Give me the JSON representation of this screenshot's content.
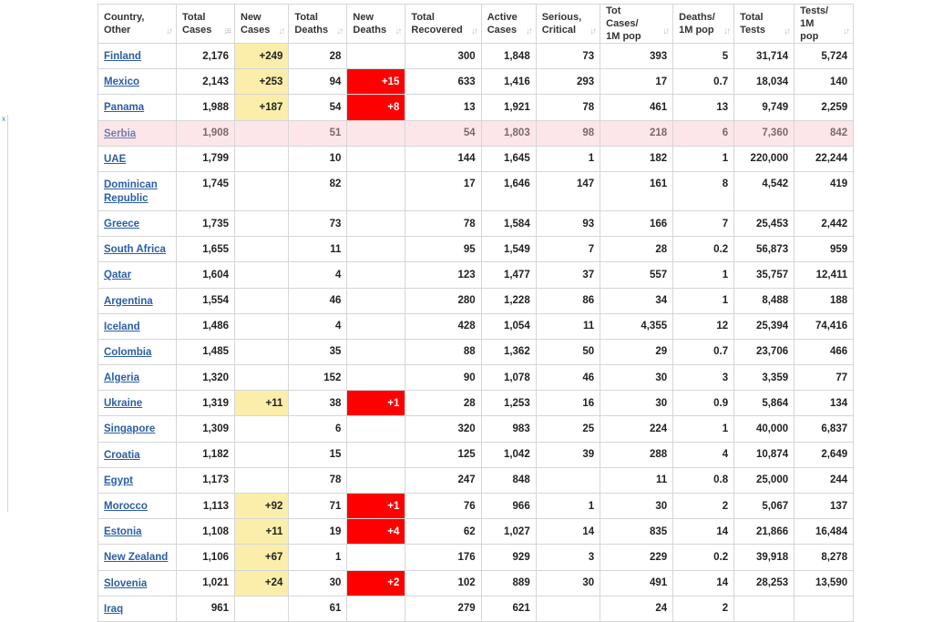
{
  "columns": [
    "Country,\nOther",
    "Total\nCases",
    "New\nCases",
    "Total\nDeaths",
    "New\nDeaths",
    "Total\nRecovered",
    "Active\nCases",
    "Serious,\nCritical",
    "Tot Cases/\n1M pop",
    "Deaths/\n1M pop",
    "Total\nTests",
    "Tests/\n1M pop"
  ],
  "rows": [
    {
      "country": "Finland",
      "total_cases": "2,176",
      "new_cases": "+249",
      "total_deaths": "28",
      "new_deaths": "",
      "total_recovered": "300",
      "active_cases": "1,848",
      "serious": "73",
      "cases_per_1m": "393",
      "deaths_per_1m": "5",
      "total_tests": "31,714",
      "tests_per_1m": "5,724"
    },
    {
      "country": "Mexico",
      "total_cases": "2,143",
      "new_cases": "+253",
      "total_deaths": "94",
      "new_deaths": "+15",
      "total_recovered": "633",
      "active_cases": "1,416",
      "serious": "293",
      "cases_per_1m": "17",
      "deaths_per_1m": "0.7",
      "total_tests": "18,034",
      "tests_per_1m": "140"
    },
    {
      "country": "Panama",
      "total_cases": "1,988",
      "new_cases": "+187",
      "total_deaths": "54",
      "new_deaths": "+8",
      "total_recovered": "13",
      "active_cases": "1,921",
      "serious": "78",
      "cases_per_1m": "461",
      "deaths_per_1m": "13",
      "total_tests": "9,749",
      "tests_per_1m": "2,259"
    },
    {
      "country": "Serbia",
      "total_cases": "1,908",
      "new_cases": "",
      "total_deaths": "51",
      "new_deaths": "",
      "total_recovered": "54",
      "active_cases": "1,803",
      "serious": "98",
      "cases_per_1m": "218",
      "deaths_per_1m": "6",
      "total_tests": "7,360",
      "tests_per_1m": "842",
      "highlight": true
    },
    {
      "country": "UAE",
      "total_cases": "1,799",
      "new_cases": "",
      "total_deaths": "10",
      "new_deaths": "",
      "total_recovered": "144",
      "active_cases": "1,645",
      "serious": "1",
      "cases_per_1m": "182",
      "deaths_per_1m": "1",
      "total_tests": "220,000",
      "tests_per_1m": "22,244"
    },
    {
      "country": "Dominican Republic",
      "total_cases": "1,745",
      "new_cases": "",
      "total_deaths": "82",
      "new_deaths": "",
      "total_recovered": "17",
      "active_cases": "1,646",
      "serious": "147",
      "cases_per_1m": "161",
      "deaths_per_1m": "8",
      "total_tests": "4,542",
      "tests_per_1m": "419",
      "tall": true
    },
    {
      "country": "Greece",
      "total_cases": "1,735",
      "new_cases": "",
      "total_deaths": "73",
      "new_deaths": "",
      "total_recovered": "78",
      "active_cases": "1,584",
      "serious": "93",
      "cases_per_1m": "166",
      "deaths_per_1m": "7",
      "total_tests": "25,453",
      "tests_per_1m": "2,442"
    },
    {
      "country": "South Africa",
      "total_cases": "1,655",
      "new_cases": "",
      "total_deaths": "11",
      "new_deaths": "",
      "total_recovered": "95",
      "active_cases": "1,549",
      "serious": "7",
      "cases_per_1m": "28",
      "deaths_per_1m": "0.2",
      "total_tests": "56,873",
      "tests_per_1m": "959"
    },
    {
      "country": "Qatar",
      "total_cases": "1,604",
      "new_cases": "",
      "total_deaths": "4",
      "new_deaths": "",
      "total_recovered": "123",
      "active_cases": "1,477",
      "serious": "37",
      "cases_per_1m": "557",
      "deaths_per_1m": "1",
      "total_tests": "35,757",
      "tests_per_1m": "12,411"
    },
    {
      "country": "Argentina",
      "total_cases": "1,554",
      "new_cases": "",
      "total_deaths": "46",
      "new_deaths": "",
      "total_recovered": "280",
      "active_cases": "1,228",
      "serious": "86",
      "cases_per_1m": "34",
      "deaths_per_1m": "1",
      "total_tests": "8,488",
      "tests_per_1m": "188"
    },
    {
      "country": "Iceland",
      "total_cases": "1,486",
      "new_cases": "",
      "total_deaths": "4",
      "new_deaths": "",
      "total_recovered": "428",
      "active_cases": "1,054",
      "serious": "11",
      "cases_per_1m": "4,355",
      "deaths_per_1m": "12",
      "total_tests": "25,394",
      "tests_per_1m": "74,416"
    },
    {
      "country": "Colombia",
      "total_cases": "1,485",
      "new_cases": "",
      "total_deaths": "35",
      "new_deaths": "",
      "total_recovered": "88",
      "active_cases": "1,362",
      "serious": "50",
      "cases_per_1m": "29",
      "deaths_per_1m": "0.7",
      "total_tests": "23,706",
      "tests_per_1m": "466"
    },
    {
      "country": "Algeria",
      "total_cases": "1,320",
      "new_cases": "",
      "total_deaths": "152",
      "new_deaths": "",
      "total_recovered": "90",
      "active_cases": "1,078",
      "serious": "46",
      "cases_per_1m": "30",
      "deaths_per_1m": "3",
      "total_tests": "3,359",
      "tests_per_1m": "77"
    },
    {
      "country": "Ukraine",
      "total_cases": "1,319",
      "new_cases": "+11",
      "total_deaths": "38",
      "new_deaths": "+1",
      "total_recovered": "28",
      "active_cases": "1,253",
      "serious": "16",
      "cases_per_1m": "30",
      "deaths_per_1m": "0.9",
      "total_tests": "5,864",
      "tests_per_1m": "134"
    },
    {
      "country": "Singapore",
      "total_cases": "1,309",
      "new_cases": "",
      "total_deaths": "6",
      "new_deaths": "",
      "total_recovered": "320",
      "active_cases": "983",
      "serious": "25",
      "cases_per_1m": "224",
      "deaths_per_1m": "1",
      "total_tests": "40,000",
      "tests_per_1m": "6,837"
    },
    {
      "country": "Croatia",
      "total_cases": "1,182",
      "new_cases": "",
      "total_deaths": "15",
      "new_deaths": "",
      "total_recovered": "125",
      "active_cases": "1,042",
      "serious": "39",
      "cases_per_1m": "288",
      "deaths_per_1m": "4",
      "total_tests": "10,874",
      "tests_per_1m": "2,649"
    },
    {
      "country": "Egypt",
      "total_cases": "1,173",
      "new_cases": "",
      "total_deaths": "78",
      "new_deaths": "",
      "total_recovered": "247",
      "active_cases": "848",
      "serious": "",
      "cases_per_1m": "11",
      "deaths_per_1m": "0.8",
      "total_tests": "25,000",
      "tests_per_1m": "244"
    },
    {
      "country": "Morocco",
      "total_cases": "1,113",
      "new_cases": "+92",
      "total_deaths": "71",
      "new_deaths": "+1",
      "total_recovered": "76",
      "active_cases": "966",
      "serious": "1",
      "cases_per_1m": "30",
      "deaths_per_1m": "2",
      "total_tests": "5,067",
      "tests_per_1m": "137"
    },
    {
      "country": "Estonia",
      "total_cases": "1,108",
      "new_cases": "+11",
      "total_deaths": "19",
      "new_deaths": "+4",
      "total_recovered": "62",
      "active_cases": "1,027",
      "serious": "14",
      "cases_per_1m": "835",
      "deaths_per_1m": "14",
      "total_tests": "21,866",
      "tests_per_1m": "16,484"
    },
    {
      "country": "New Zealand",
      "total_cases": "1,106",
      "new_cases": "+67",
      "total_deaths": "1",
      "new_deaths": "",
      "total_recovered": "176",
      "active_cases": "929",
      "serious": "3",
      "cases_per_1m": "229",
      "deaths_per_1m": "0.2",
      "total_tests": "39,918",
      "tests_per_1m": "8,278"
    },
    {
      "country": "Slovenia",
      "total_cases": "1,021",
      "new_cases": "+24",
      "total_deaths": "30",
      "new_deaths": "+2",
      "total_recovered": "102",
      "active_cases": "889",
      "serious": "30",
      "cases_per_1m": "491",
      "deaths_per_1m": "14",
      "total_tests": "28,253",
      "tests_per_1m": "13,590"
    },
    {
      "country": "Iraq",
      "total_cases": "961",
      "new_cases": "",
      "total_deaths": "61",
      "new_deaths": "",
      "total_recovered": "279",
      "active_cases": "621",
      "serious": "",
      "cases_per_1m": "24",
      "deaths_per_1m": "2",
      "total_tests": "",
      "tests_per_1m": ""
    }
  ],
  "icons": {
    "sort_icon": "up-down-arrows-icon",
    "sort_active_icon": "sort-desc-icon",
    "ad_close": "close-icon"
  },
  "ad_close_glyph": "x",
  "colors": {
    "new_cases_bg": "#fbeeaa",
    "new_deaths_bg": "#ff0000",
    "highlight_row_bg": "#fde6ea",
    "link": "#2b5ea7"
  }
}
